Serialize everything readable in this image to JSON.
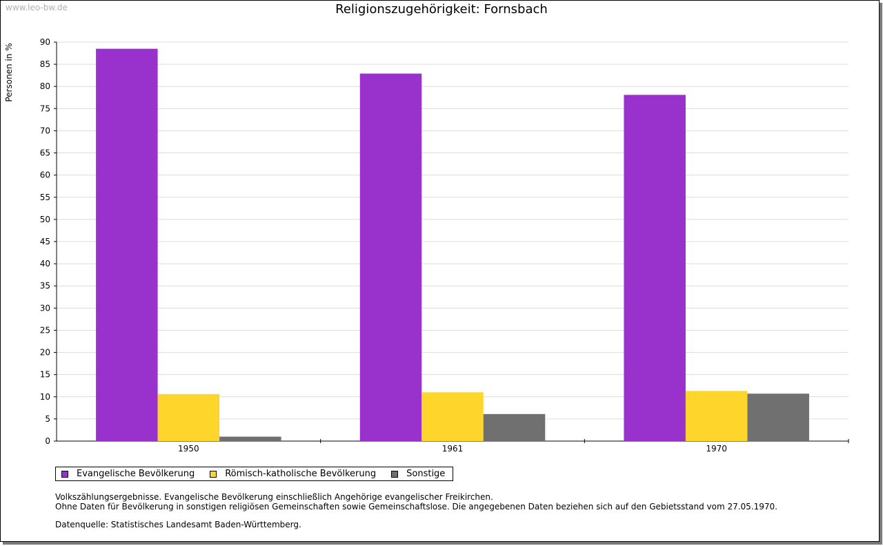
{
  "watermark": "www.leo-bw.de",
  "chart_data": {
    "type": "bar",
    "title": "Religionszugehörigkeit: Fornsbach",
    "xlabel": "",
    "ylabel": "Personen in %",
    "categories": [
      "1950",
      "1961",
      "1970"
    ],
    "series": [
      {
        "name": "Evangelische Bevölkerung",
        "color": "#9932cc",
        "values": [
          88.5,
          82.9,
          78.1
        ]
      },
      {
        "name": "Römisch-katholische Bevölkerung",
        "color": "#fdd52b",
        "values": [
          10.6,
          11.0,
          11.3
        ]
      },
      {
        "name": "Sonstige",
        "color": "#707070",
        "values": [
          1.0,
          6.1,
          10.7
        ]
      }
    ],
    "ylim": [
      0,
      90
    ],
    "yticks": [
      "0",
      "5",
      "10",
      "15",
      "20",
      "25",
      "30",
      "35",
      "40",
      "45",
      "50",
      "55",
      "60",
      "65",
      "70",
      "75",
      "80",
      "85",
      "90"
    ],
    "grid": true,
    "legend": "bottom"
  },
  "notes": {
    "line1": "Volkszählungsergebnisse. Evangelische Bevölkerung einschließlich Angehörige evangelischer Freikirchen.",
    "line2": "Ohne Daten für Bevölkerung in sonstigen religiösen Gemeinschaften sowie Gemeinschaftslose. Die angegebenen Daten beziehen sich auf den Gebietsstand vom 27.05.1970.",
    "source": "Datenquelle: Statistisches Landesamt Baden-Württemberg."
  }
}
